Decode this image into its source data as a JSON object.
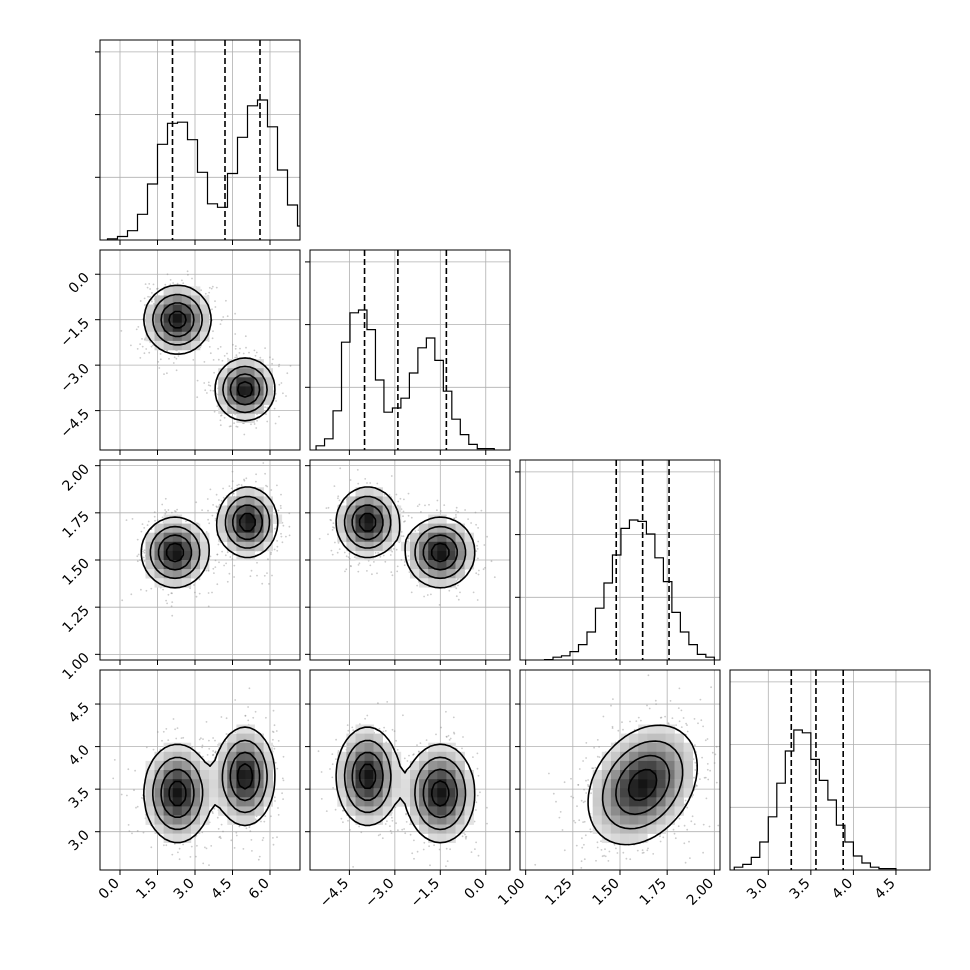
{
  "colors": {
    "axes": "#000000",
    "grid": "#b0b0b0",
    "hist_line": "#000000",
    "contour": "#000000",
    "scatter_points": "#8c8c8c",
    "density_dark": "#000000",
    "density_light": "#ffffff"
  },
  "chart_data": {
    "type": "corner",
    "title": "",
    "grid": true,
    "n_parameters": 4,
    "quantile_style": "dashed vertical lines",
    "parameters": [
      {
        "index": 0,
        "range": [
          -0.8,
          7.2
        ],
        "ticks": [
          "0.0",
          "1.5",
          "3.0",
          "4.5",
          "6.0"
        ],
        "tick_values": [
          0,
          1.5,
          3.0,
          4.5,
          6.0
        ],
        "quantiles": [
          2.1,
          4.2,
          5.6
        ]
      },
      {
        "index": 1,
        "range": [
          -5.8,
          0.8
        ],
        "ticks": [
          "−4.5",
          "−3.0",
          "−1.5",
          "0.0"
        ],
        "tick_values": [
          -4.5,
          -3.0,
          -1.5,
          0.0
        ],
        "quantiles": [
          -4.0,
          -2.9,
          -1.3
        ]
      },
      {
        "index": 2,
        "range": [
          0.97,
          2.03
        ],
        "ticks": [
          "1.00",
          "1.25",
          "1.50",
          "1.75",
          "2.00"
        ],
        "tick_values": [
          1.0,
          1.25,
          1.5,
          1.75,
          2.0
        ],
        "quantiles": [
          1.48,
          1.62,
          1.76
        ]
      },
      {
        "index": 3,
        "range": [
          2.55,
          4.9
        ],
        "ticks": [
          "3.0",
          "3.5",
          "4.0",
          "4.5"
        ],
        "tick_values": [
          3.0,
          3.5,
          4.0,
          4.5
        ],
        "quantiles": [
          3.27,
          3.56,
          3.88
        ]
      }
    ],
    "histograms": [
      {
        "param": 0,
        "bin_start": -0.5,
        "bin_width": 0.4,
        "counts": [
          0.01,
          0.03,
          0.08,
          0.22,
          0.48,
          0.82,
          1.0,
          1.01,
          0.86,
          0.58,
          0.31,
          0.28,
          0.57,
          0.88,
          1.15,
          1.2,
          0.97,
          0.6,
          0.3,
          0.12,
          0.03,
          0.01
        ]
      },
      {
        "param": 1,
        "bin_start": -5.6,
        "bin_width": 0.28,
        "counts": [
          0.03,
          0.08,
          0.28,
          0.77,
          0.98,
          1.0,
          0.86,
          0.5,
          0.27,
          0.3,
          0.37,
          0.55,
          0.73,
          0.8,
          0.64,
          0.42,
          0.22,
          0.11,
          0.04,
          0.01,
          0.01
        ]
      },
      {
        "param": 2,
        "bin_start": 1.1,
        "bin_width": 0.045,
        "counts": [
          0.003,
          0.02,
          0.03,
          0.06,
          0.11,
          0.2,
          0.37,
          0.55,
          0.75,
          0.94,
          1.0,
          0.99,
          0.9,
          0.73,
          0.56,
          0.34,
          0.2,
          0.11,
          0.04,
          0.02
        ]
      },
      {
        "param": 3,
        "bin_start": 2.6,
        "bin_width": 0.1,
        "counts": [
          0.02,
          0.04,
          0.09,
          0.2,
          0.38,
          0.62,
          0.85,
          1.0,
          0.98,
          0.79,
          0.64,
          0.5,
          0.32,
          0.2,
          0.1,
          0.05,
          0.02,
          0.01,
          0.01
        ]
      }
    ],
    "joint_distributions": [
      {
        "x_param": 0,
        "y_param": 1,
        "modes": [
          {
            "x": 2.3,
            "y": -1.5,
            "sx": 0.65,
            "sy": 0.55,
            "rho": 0.0,
            "weight": 0.5
          },
          {
            "x": 5.0,
            "y": -3.8,
            "sx": 0.58,
            "sy": 0.5,
            "rho": 0.0,
            "weight": 0.5
          }
        ]
      },
      {
        "x_param": 0,
        "y_param": 2,
        "modes": [
          {
            "x": 2.2,
            "y": 1.54,
            "sx": 0.65,
            "sy": 0.09,
            "rho": 0.0,
            "weight": 0.5
          },
          {
            "x": 5.1,
            "y": 1.7,
            "sx": 0.58,
            "sy": 0.09,
            "rho": 0.0,
            "weight": 0.5
          }
        ]
      },
      {
        "x_param": 1,
        "y_param": 2,
        "modes": [
          {
            "x": -3.9,
            "y": 1.7,
            "sx": 0.5,
            "sy": 0.09,
            "rho": 0.0,
            "weight": 0.5
          },
          {
            "x": -1.5,
            "y": 1.54,
            "sx": 0.55,
            "sy": 0.09,
            "rho": 0.0,
            "weight": 0.5
          }
        ]
      },
      {
        "x_param": 0,
        "y_param": 3,
        "modes": [
          {
            "x": 2.3,
            "y": 3.45,
            "sx": 0.65,
            "sy": 0.28,
            "rho": 0.0,
            "weight": 0.5
          },
          {
            "x": 5.0,
            "y": 3.65,
            "sx": 0.58,
            "sy": 0.28,
            "rho": 0.0,
            "weight": 0.5
          }
        ]
      },
      {
        "x_param": 1,
        "y_param": 3,
        "modes": [
          {
            "x": -3.9,
            "y": 3.65,
            "sx": 0.5,
            "sy": 0.28,
            "rho": 0.0,
            "weight": 0.5
          },
          {
            "x": -1.5,
            "y": 3.45,
            "sx": 0.55,
            "sy": 0.28,
            "rho": 0.0,
            "weight": 0.5
          }
        ]
      },
      {
        "x_param": 2,
        "y_param": 3,
        "modes": [
          {
            "x": 1.62,
            "y": 3.55,
            "sx": 0.14,
            "sy": 0.34,
            "rho": 0.3,
            "weight": 1.0
          }
        ]
      }
    ]
  }
}
